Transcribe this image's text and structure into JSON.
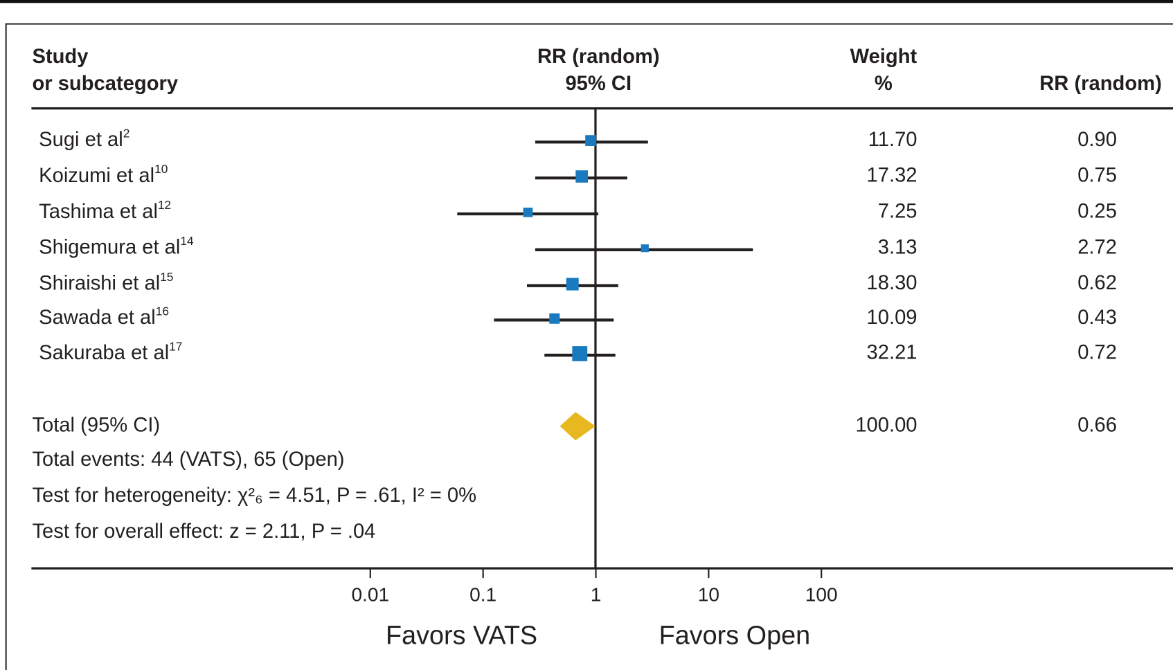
{
  "chart_data": {
    "type": "forest",
    "header": {
      "study": [
        "Study",
        "or subcategory"
      ],
      "rr_ci": [
        "RR (random)",
        "95% CI"
      ],
      "weight": [
        "Weight",
        "%"
      ],
      "rr": [
        "RR (random)"
      ]
    },
    "studies": [
      "Sugi et al",
      "Koizumi et al",
      "Tashima et al",
      "Shigemura et al",
      "Shiraishi et al",
      "Sawada et al",
      "Sakuraba et al"
    ],
    "refs": [
      "2",
      "10",
      "12",
      "14",
      "15",
      "16",
      "17"
    ],
    "rr": [
      0.9,
      0.75,
      0.25,
      2.72,
      0.62,
      0.43,
      0.72
    ],
    "rr_labels": [
      "0.90",
      "0.75",
      "0.25",
      "2.72",
      "0.62",
      "0.43",
      "0.72"
    ],
    "ci_lower": [
      0.29,
      0.29,
      0.059,
      0.29,
      0.245,
      0.125,
      0.35
    ],
    "ci_upper": [
      2.9,
      1.9,
      1.05,
      24.7,
      1.58,
      1.44,
      1.49
    ],
    "weights": [
      11.7,
      17.32,
      7.25,
      3.13,
      18.3,
      10.09,
      32.21
    ],
    "weight_labels": [
      "11.70",
      "17.32",
      "7.25",
      "3.13",
      "18.30",
      "10.09",
      "32.21"
    ],
    "color": "#1a7abf",
    "total": {
      "label": "Total (95% CI)",
      "rr": 0.66,
      "rr_label": "0.66",
      "ci_lower": 0.48,
      "ci_upper": 0.99,
      "weight_label": "100.00",
      "color": "#e8b820"
    },
    "notes": [
      "Total events: 44 (VATS), 65 (Open)",
      "Test for heterogeneity: χ²₆ = 4.51, P = .61, I² = 0%",
      "Test for overall effect: z = 2.11, P = .04"
    ],
    "xscale": "log",
    "xlim": [
      0.01,
      100
    ],
    "xticks": [
      0.01,
      0.1,
      1,
      10,
      100
    ],
    "favors": [
      "Favors VATS",
      "Favors Open"
    ]
  }
}
